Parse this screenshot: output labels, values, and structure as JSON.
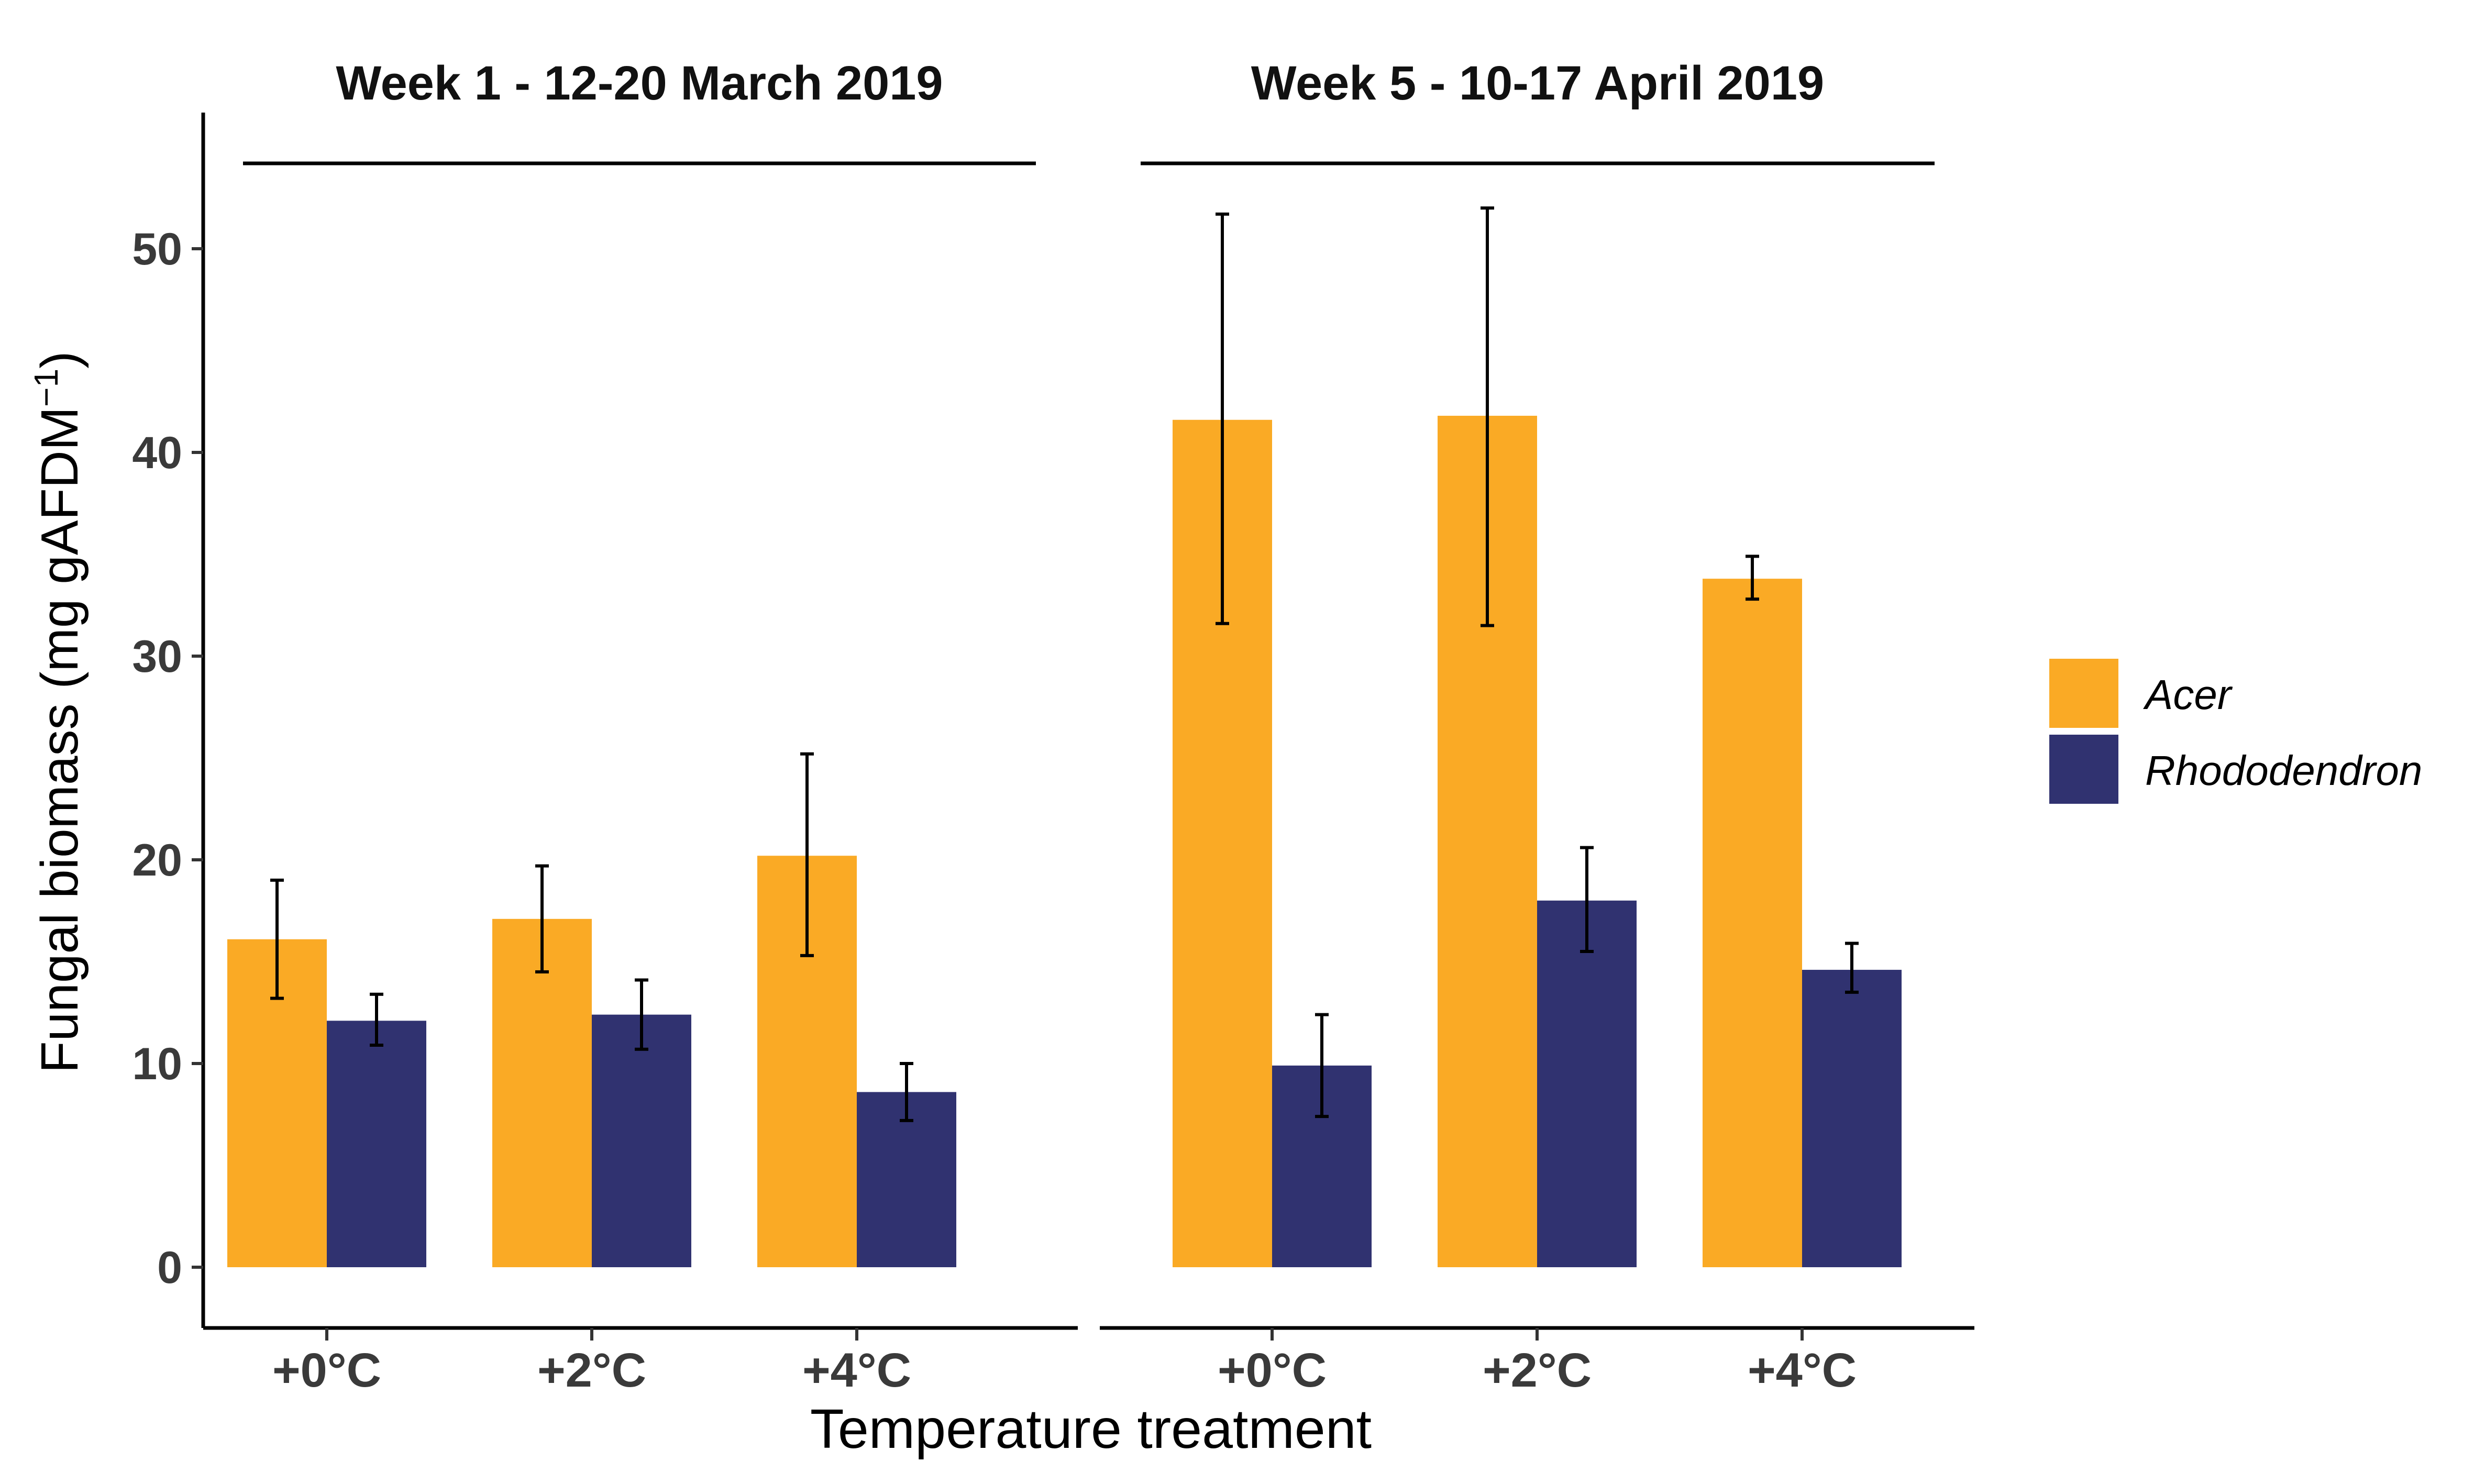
{
  "chart_data": {
    "type": "bar",
    "xlabel": "Temperature treatment",
    "ylabel": "Fungal biomass (mg gAFDM",
    "ylabel_sup": "−1",
    "ylabel_close": ")",
    "ylim": [
      0,
      55
    ],
    "yticks": [
      0,
      10,
      20,
      30,
      40,
      50
    ],
    "categories": [
      "+0°C",
      "+2°C",
      "+4°C"
    ],
    "legend_position": "right",
    "grid": false,
    "colors": {
      "Acer": "#FAAA25",
      "Rhododendron": "#303270"
    },
    "legend": [
      {
        "name": "Acer",
        "color": "#FAAA25"
      },
      {
        "name": "Rhododendron",
        "color": "#303270"
      }
    ],
    "panels": [
      {
        "title": "Week 1 - 12-20 March 2019",
        "series": [
          {
            "name": "Acer",
            "values": [
              16.1,
              17.1,
              20.2
            ],
            "err_low": [
              13.2,
              14.5,
              15.3
            ],
            "err_high": [
              19.0,
              19.7,
              25.2
            ]
          },
          {
            "name": "Rhododendron",
            "values": [
              12.1,
              12.4,
              8.6
            ],
            "err_low": [
              10.9,
              10.7,
              7.2
            ],
            "err_high": [
              13.4,
              14.1,
              10.0
            ]
          }
        ]
      },
      {
        "title": "Week 5 - 10-17 April 2019",
        "series": [
          {
            "name": "Acer",
            "values": [
              41.6,
              41.8,
              33.8
            ],
            "err_low": [
              31.6,
              31.5,
              32.8
            ],
            "err_high": [
              51.7,
              52.0,
              34.9
            ]
          },
          {
            "name": "Rhododendron",
            "values": [
              9.9,
              18.0,
              14.6
            ],
            "err_low": [
              7.4,
              15.5,
              13.5
            ],
            "err_high": [
              12.4,
              20.6,
              15.9
            ]
          }
        ]
      }
    ]
  }
}
